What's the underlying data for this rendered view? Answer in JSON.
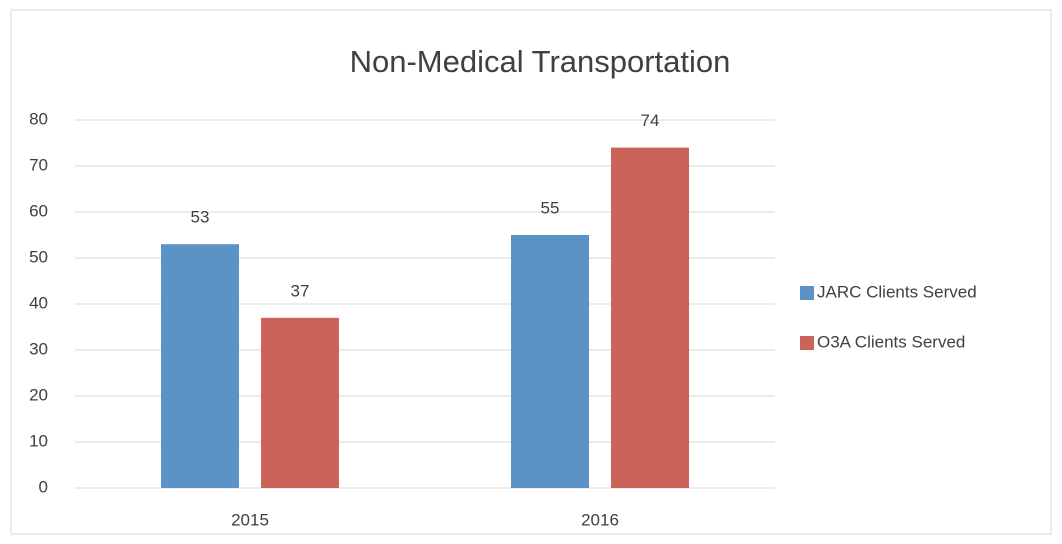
{
  "chart_data": {
    "type": "bar",
    "title": "Non-Medical Transportation",
    "categories": [
      "2015",
      "2016"
    ],
    "series": [
      {
        "name": "JARC Clients Served",
        "color": "#5b93c7",
        "values": [
          53,
          55
        ]
      },
      {
        "name": "O3A Clients Served",
        "color": "#cb635b",
        "values": [
          37,
          74
        ]
      }
    ],
    "ylim": [
      0,
      80
    ],
    "yticks": [
      0,
      10,
      20,
      30,
      40,
      50,
      60,
      70,
      80
    ],
    "grid": true,
    "legend": "right"
  }
}
